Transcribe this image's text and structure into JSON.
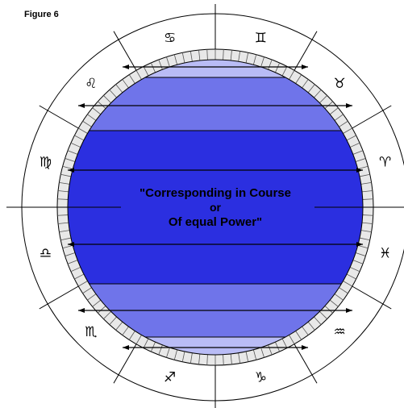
{
  "figure_label": "Figure 6",
  "center_text": {
    "line1": "\"Corresponding in Course",
    "line2": "or",
    "line3": "Of equal Power\""
  },
  "signs": [
    {
      "name": "cancer",
      "glyph": "♋"
    },
    {
      "name": "gemini",
      "glyph": "♊"
    },
    {
      "name": "taurus",
      "glyph": "♉"
    },
    {
      "name": "aries",
      "glyph": "♈"
    },
    {
      "name": "pisces",
      "glyph": "♓"
    },
    {
      "name": "aquarius",
      "glyph": "♒"
    },
    {
      "name": "capricorn",
      "glyph": "♑"
    },
    {
      "name": "sagittarius",
      "glyph": "♐"
    },
    {
      "name": "scorpio",
      "glyph": "♏"
    },
    {
      "name": "libra",
      "glyph": "♎"
    },
    {
      "name": "virgo",
      "glyph": "♍"
    },
    {
      "name": "leo",
      "glyph": "♌"
    }
  ],
  "colors": {
    "pale_band": "#b9bcf6",
    "mid_band": "#6f74ea",
    "deep_band": "#2b2fe0",
    "line": "#000000"
  }
}
